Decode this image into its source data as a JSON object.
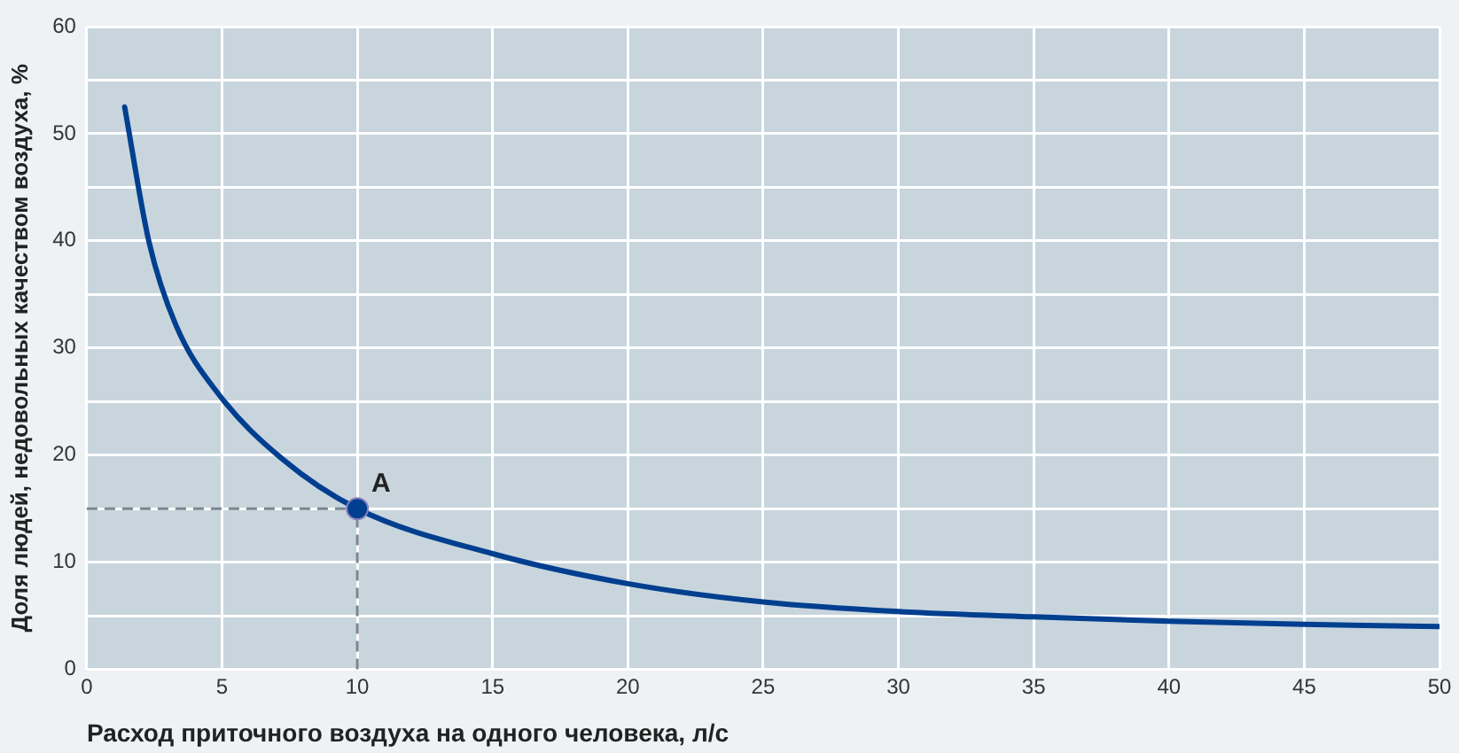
{
  "chart_data": {
    "type": "line",
    "xlabel": "Расход приточного воздуха на одного человека, л/с",
    "ylabel": "Доля людей, недовольных качеством воздуха, %",
    "xlim": [
      0,
      50
    ],
    "xticks": [
      0,
      5,
      10,
      15,
      20,
      25,
      30,
      35,
      40,
      45,
      50
    ],
    "ylim": [
      0,
      60
    ],
    "yticks": [
      0,
      {
        "value": 5,
        "label": null
      },
      10,
      {
        "value": 15,
        "label": null
      },
      20,
      {
        "value": 25,
        "label": null
      },
      30,
      {
        "value": 35,
        "label": null
      },
      40,
      {
        "value": 45,
        "label": null
      },
      50,
      {
        "value": 55,
        "label": null
      },
      60
    ],
    "grid": true,
    "legend": false,
    "series": [
      {
        "color": "#003f8f",
        "marker": "none",
        "x": [
          1.4,
          2.3,
          3.3,
          4.9,
          7.2,
          10,
          15,
          20,
          25,
          30,
          35,
          40,
          45,
          50
        ],
        "values": [
          52.5,
          39.9,
          32.1,
          25.6,
          19.7,
          15,
          10.8,
          8,
          6.3,
          5.4,
          4.9,
          4.5,
          4.2,
          4
        ]
      },
      {
        "type": "scatter",
        "color": "#003f8f",
        "marker": "circle",
        "x": [
          10
        ],
        "values": [
          15
        ]
      }
    ],
    "ref_lines": [
      {
        "axis": "x",
        "value": 10,
        "color": "#7a8590",
        "line_style": "dashed"
      },
      {
        "axis": "y",
        "value": 15,
        "color": "#7a8590",
        "line_style": "dashed"
      }
    ],
    "annotations": [
      {
        "text": "A",
        "x": 10,
        "y": 15
      }
    ]
  }
}
